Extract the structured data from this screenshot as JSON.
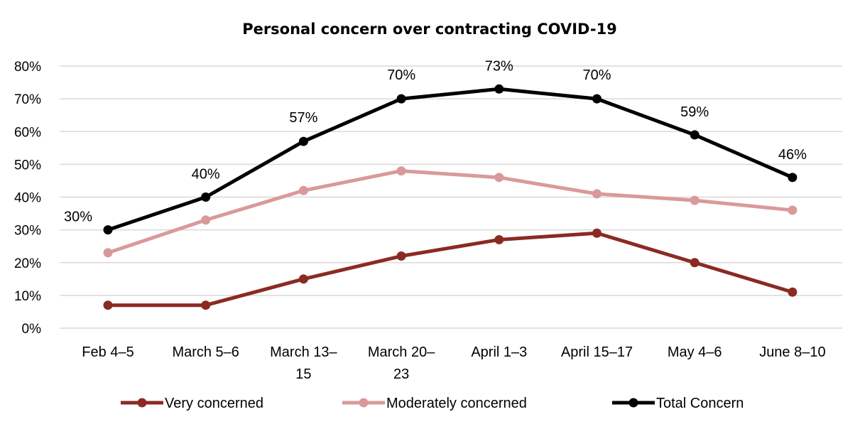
{
  "chart_data": {
    "type": "line",
    "title": "Personal concern over contracting COVID-19",
    "xlabel": "",
    "ylabel": "",
    "ylim": [
      0,
      80
    ],
    "y_ticks": [
      "0%",
      "10%",
      "20%",
      "30%",
      "40%",
      "50%",
      "60%",
      "70%",
      "80%"
    ],
    "categories": [
      [
        "Feb 4–5"
      ],
      [
        "March 5–6"
      ],
      [
        "March 13–",
        "15"
      ],
      [
        "March 20–",
        "23"
      ],
      [
        "April 1–3"
      ],
      [
        "April 15–17"
      ],
      [
        "May 4–6"
      ],
      [
        "June 8–10"
      ]
    ],
    "grid": "horizontal",
    "legend_position": "bottom",
    "series": [
      {
        "name": "Very concerned",
        "color": "#8b2a23",
        "values": [
          7,
          7,
          15,
          22,
          27,
          29,
          20,
          11
        ],
        "data_labels": []
      },
      {
        "name": "Moderately concerned",
        "color": "#d9999a",
        "values": [
          23,
          33,
          42,
          48,
          46,
          41,
          39,
          36
        ],
        "data_labels": []
      },
      {
        "name": "Total Concern",
        "color": "#000000",
        "values": [
          30,
          40,
          57,
          70,
          73,
          70,
          59,
          46
        ],
        "data_labels": [
          "30%",
          "40%",
          "57%",
          "70%",
          "73%",
          "70%",
          "59%",
          "46%"
        ]
      }
    ]
  }
}
